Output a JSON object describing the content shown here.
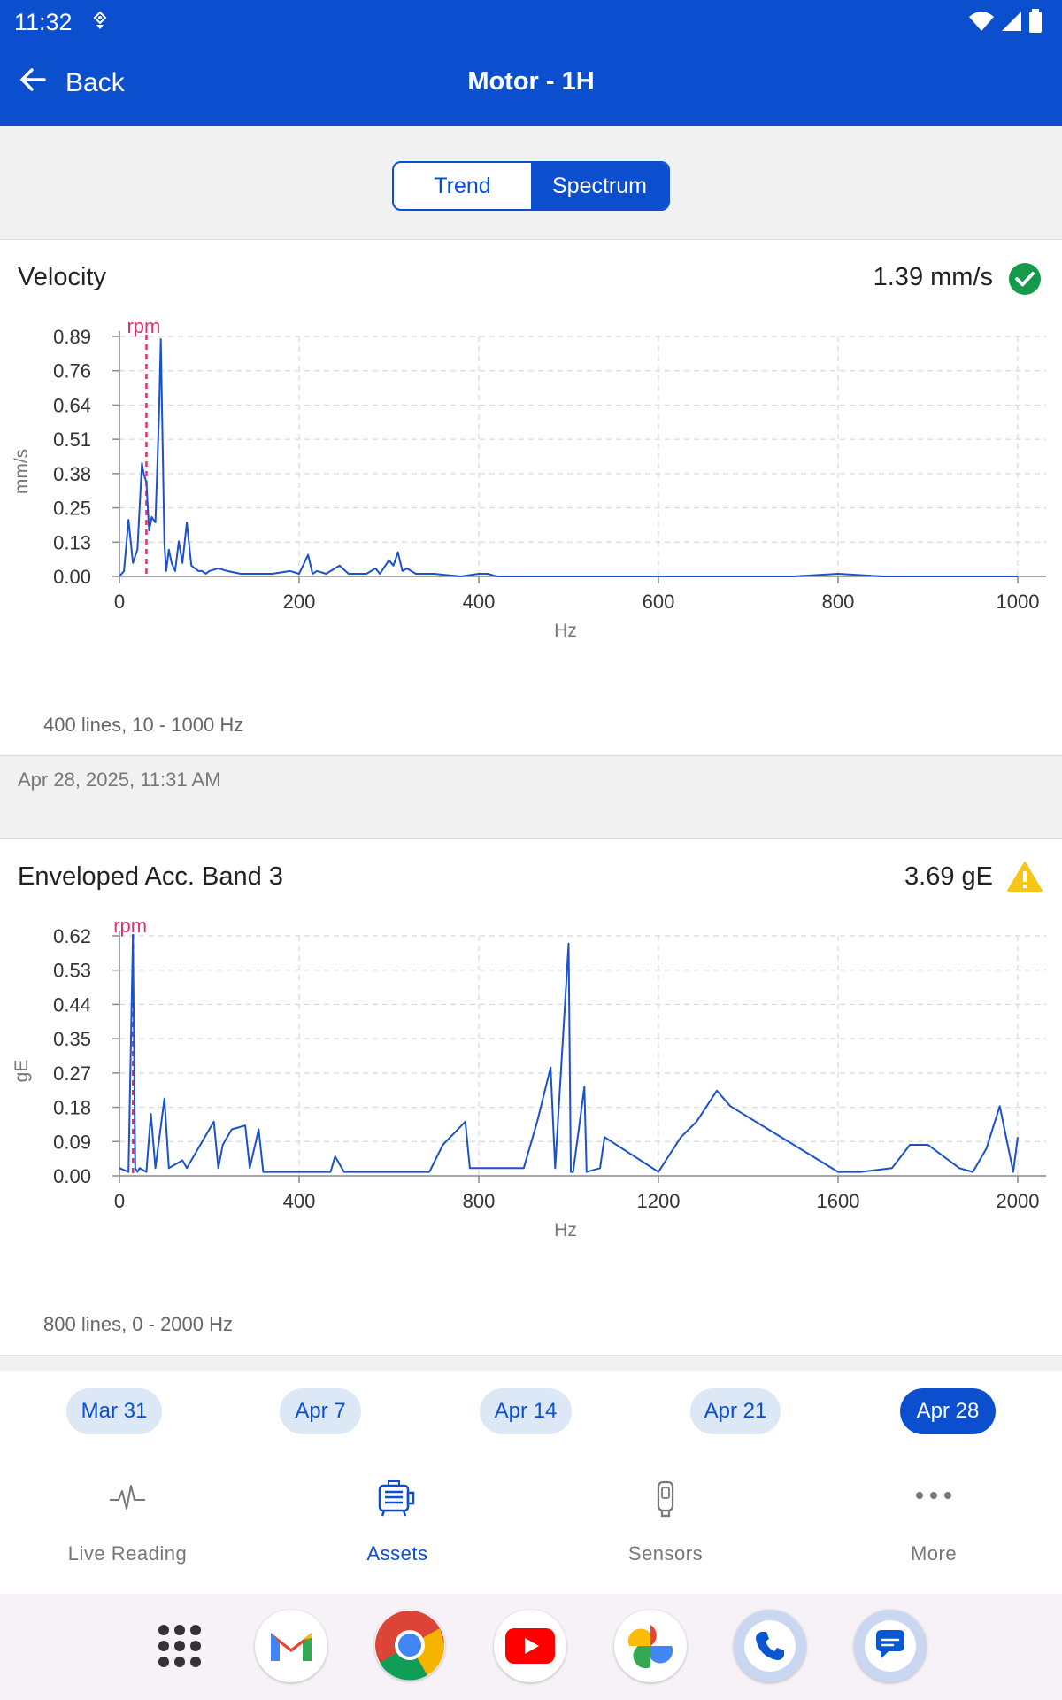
{
  "status": {
    "time": "11:32"
  },
  "appbar": {
    "back_label": "Back",
    "title": "Motor - 1H"
  },
  "segment": {
    "options": [
      "Trend",
      "Spectrum"
    ],
    "selected": "Spectrum"
  },
  "velocity": {
    "title": "Velocity",
    "value": "1.39 mm/s",
    "status": "ok",
    "footnote": "400 lines, 10 - 1000 Hz",
    "timestamp": "Apr 28, 2025, 11:31 AM"
  },
  "envelope": {
    "title": "Enveloped Acc. Band 3",
    "value": "3.69 gE",
    "status": "warning",
    "footnote": "800 lines, 0 - 2000 Hz"
  },
  "chart_data": [
    {
      "type": "line",
      "ylabel": "mm/s",
      "xlabel": "Hz",
      "xlim": [
        0,
        1000
      ],
      "ylim": [
        0,
        0.89
      ],
      "xticks": [
        "0",
        "200",
        "400",
        "600",
        "800",
        "1000"
      ],
      "yticks": [
        "0.00",
        "0.13",
        "0.25",
        "0.38",
        "0.51",
        "0.64",
        "0.76",
        "0.89"
      ],
      "rpm_marker": {
        "label": "rpm",
        "x": 30
      },
      "series": [
        {
          "x": [
            0,
            5,
            10,
            15,
            20,
            25,
            27,
            30,
            33,
            36,
            40,
            44,
            46,
            48,
            50,
            52,
            55,
            58,
            62,
            66,
            70,
            75,
            80,
            84,
            88,
            92,
            96,
            100,
            110,
            120,
            135,
            150,
            170,
            190,
            200,
            210,
            215,
            220,
            230,
            245,
            255,
            260,
            275,
            285,
            290,
            300,
            305,
            310,
            315,
            320,
            330,
            350,
            380,
            400,
            410,
            420,
            450,
            500,
            550,
            600,
            650,
            700,
            750,
            800,
            850,
            900,
            950,
            1000
          ],
          "values": [
            0,
            0.02,
            0.21,
            0.05,
            0.1,
            0.42,
            0.38,
            0.35,
            0.17,
            0.22,
            0.2,
            0.6,
            0.88,
            0.5,
            0.12,
            0.02,
            0.1,
            0.05,
            0.02,
            0.13,
            0.05,
            0.2,
            0.04,
            0.03,
            0.02,
            0.02,
            0.01,
            0.02,
            0.03,
            0.02,
            0.01,
            0.01,
            0.01,
            0.02,
            0.01,
            0.08,
            0.01,
            0.02,
            0.01,
            0.04,
            0.01,
            0.01,
            0.01,
            0.03,
            0.01,
            0.06,
            0.04,
            0.09,
            0.02,
            0.03,
            0.01,
            0.01,
            0.0,
            0.01,
            0.01,
            0.0,
            0.0,
            0.0,
            0.0,
            0.0,
            0.0,
            0.0,
            0.0,
            0.01,
            0.0,
            0.0,
            0.0,
            0.0
          ]
        }
      ]
    },
    {
      "type": "line",
      "ylabel": "gE",
      "xlabel": "Hz",
      "xlim": [
        0,
        2000
      ],
      "ylim": [
        0,
        0.62
      ],
      "xticks": [
        "0",
        "400",
        "800",
        "1200",
        "1600",
        "2000"
      ],
      "yticks": [
        "0.00",
        "0.09",
        "0.18",
        "0.27",
        "0.35",
        "0.44",
        "0.53",
        "0.62"
      ],
      "rpm_marker": {
        "label": "rpm",
        "x": 30
      },
      "series": [
        {
          "x": [
            0,
            20,
            30,
            35,
            40,
            45,
            60,
            70,
            80,
            100,
            110,
            140,
            150,
            210,
            220,
            230,
            250,
            280,
            290,
            310,
            320,
            390,
            470,
            480,
            500,
            690,
            720,
            770,
            780,
            900,
            930,
            960,
            970,
            1000,
            1005,
            1010,
            1035,
            1040,
            1070,
            1080,
            1200,
            1250,
            1285,
            1330,
            1360,
            1600,
            1650,
            1720,
            1760,
            1800,
            1870,
            1900,
            1930,
            1960,
            1990,
            2000
          ],
          "values": [
            0.02,
            0.01,
            0.62,
            0.02,
            0.01,
            0.02,
            0.01,
            0.16,
            0.02,
            0.2,
            0.02,
            0.04,
            0.02,
            0.14,
            0.02,
            0.08,
            0.12,
            0.13,
            0.02,
            0.12,
            0.01,
            0.01,
            0.01,
            0.05,
            0.01,
            0.01,
            0.08,
            0.14,
            0.02,
            0.02,
            0.14,
            0.28,
            0.02,
            0.6,
            0.01,
            0.01,
            0.23,
            0.01,
            0.02,
            0.1,
            0.01,
            0.1,
            0.14,
            0.22,
            0.18,
            0.01,
            0.01,
            0.02,
            0.08,
            0.08,
            0.02,
            0.01,
            0.07,
            0.18,
            0.01,
            0.1
          ]
        }
      ]
    }
  ],
  "date_chips": [
    {
      "label": "Mar 31",
      "selected": false
    },
    {
      "label": "Apr 7",
      "selected": false
    },
    {
      "label": "Apr 14",
      "selected": false
    },
    {
      "label": "Apr 21",
      "selected": false
    },
    {
      "label": "Apr 28",
      "selected": true
    }
  ],
  "nav": [
    {
      "label": "Live Reading",
      "icon": "pulse-icon",
      "active": false
    },
    {
      "label": "Assets",
      "icon": "motor-icon",
      "active": true
    },
    {
      "label": "Sensors",
      "icon": "sensor-icon",
      "active": false
    },
    {
      "label": "More",
      "icon": "more-icon",
      "active": false
    }
  ],
  "dock": [
    "apps-grid-icon",
    "gmail-icon",
    "chrome-icon",
    "youtube-icon",
    "photos-icon",
    "phone-icon",
    "messages-icon"
  ],
  "colors": {
    "primary": "#0b4fcf",
    "rpm": "#e0306f",
    "ok": "#15994a",
    "warning": "#f5c518",
    "line": "#1a52c9"
  }
}
